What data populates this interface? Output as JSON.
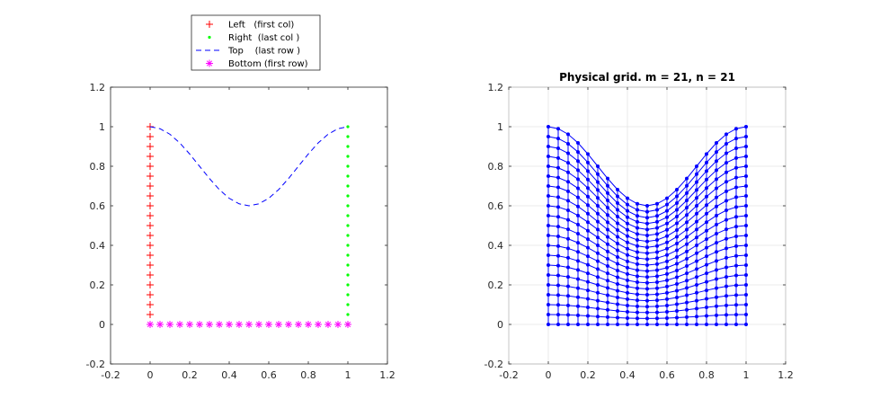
{
  "chart_data": [
    {
      "type": "line",
      "title": "",
      "xlabel": "",
      "ylabel": "",
      "xlim": [
        -0.2,
        1.2
      ],
      "ylim": [
        -0.2,
        1.2
      ],
      "xticks": [
        "-0.2",
        "0",
        "0.2",
        "0.4",
        "0.6",
        "0.8",
        "1",
        "1.2"
      ],
      "yticks": [
        "-0.2",
        "0",
        "0.2",
        "0.4",
        "0.6",
        "0.8",
        "1",
        "1.2"
      ],
      "grid": false,
      "legend_position": "top-center-outside",
      "series": [
        {
          "name": "Left   (first col)",
          "color": "#ff0000",
          "marker": "+",
          "line": "none",
          "x": [
            0,
            0,
            0,
            0,
            0,
            0,
            0,
            0,
            0,
            0,
            0,
            0,
            0,
            0,
            0,
            0,
            0,
            0,
            0,
            0,
            0
          ],
          "y": [
            0,
            0.05,
            0.1,
            0.15,
            0.2,
            0.25,
            0.3,
            0.35,
            0.4,
            0.45,
            0.5,
            0.55,
            0.6,
            0.65,
            0.7,
            0.75,
            0.8,
            0.85,
            0.9,
            0.95,
            1
          ]
        },
        {
          "name": "Right  (last col )",
          "color": "#00ff00",
          "marker": "dot",
          "line": "none",
          "x": [
            1,
            1,
            1,
            1,
            1,
            1,
            1,
            1,
            1,
            1,
            1,
            1,
            1,
            1,
            1,
            1,
            1,
            1,
            1,
            1,
            1
          ],
          "y": [
            0,
            0.05,
            0.1,
            0.15,
            0.2,
            0.25,
            0.3,
            0.35,
            0.4,
            0.45,
            0.5,
            0.55,
            0.6,
            0.65,
            0.7,
            0.75,
            0.8,
            0.85,
            0.9,
            0.95,
            1
          ]
        },
        {
          "name": "Top    (last row )",
          "color": "#0000ff",
          "marker": "none",
          "line": "dashed",
          "x": [
            0,
            0.05,
            0.1,
            0.15,
            0.2,
            0.25,
            0.3,
            0.35,
            0.4,
            0.45,
            0.5,
            0.55,
            0.6,
            0.65,
            0.7,
            0.75,
            0.8,
            0.85,
            0.9,
            0.95,
            1
          ],
          "y": [
            1,
            0.99,
            0.962,
            0.918,
            0.862,
            0.8,
            0.738,
            0.682,
            0.638,
            0.61,
            0.6,
            0.61,
            0.638,
            0.682,
            0.738,
            0.8,
            0.862,
            0.918,
            0.962,
            0.99,
            1
          ]
        },
        {
          "name": "Bottom (first row)",
          "color": "#ff00ff",
          "marker": "*",
          "line": "none",
          "x": [
            0,
            0.05,
            0.1,
            0.15,
            0.2,
            0.25,
            0.3,
            0.35,
            0.4,
            0.45,
            0.5,
            0.55,
            0.6,
            0.65,
            0.7,
            0.75,
            0.8,
            0.85,
            0.9,
            0.95,
            1
          ],
          "y": [
            0,
            0,
            0,
            0,
            0,
            0,
            0,
            0,
            0,
            0,
            0,
            0,
            0,
            0,
            0,
            0,
            0,
            0,
            0,
            0,
            0
          ]
        }
      ]
    },
    {
      "type": "line",
      "title": "Physical grid. m = 21, n = 21",
      "xlabel": "",
      "ylabel": "",
      "xlim": [
        -0.2,
        1.2
      ],
      "ylim": [
        -0.2,
        1.2
      ],
      "xticks": [
        "-0.2",
        "0",
        "0.2",
        "0.4",
        "0.6",
        "0.8",
        "1",
        "1.2"
      ],
      "yticks": [
        "-0.2",
        "0",
        "0.2",
        "0.4",
        "0.6",
        "0.8",
        "1",
        "1.2"
      ],
      "grid": true,
      "mesh": {
        "m": 21,
        "n": 21,
        "color": "#0000ff",
        "marker": "dot",
        "x": [
          0,
          0.05,
          0.1,
          0.15,
          0.2,
          0.25,
          0.3,
          0.35,
          0.4,
          0.45,
          0.5,
          0.55,
          0.6,
          0.65,
          0.7,
          0.75,
          0.8,
          0.85,
          0.9,
          0.95,
          1
        ],
        "bottom_y": [
          0,
          0,
          0,
          0,
          0,
          0,
          0,
          0,
          0,
          0,
          0,
          0,
          0,
          0,
          0,
          0,
          0,
          0,
          0,
          0,
          0
        ],
        "top_y": [
          1,
          0.99,
          0.962,
          0.918,
          0.862,
          0.8,
          0.738,
          0.682,
          0.638,
          0.61,
          0.6,
          0.61,
          0.638,
          0.682,
          0.738,
          0.8,
          0.862,
          0.918,
          0.962,
          0.99,
          1
        ]
      }
    }
  ]
}
